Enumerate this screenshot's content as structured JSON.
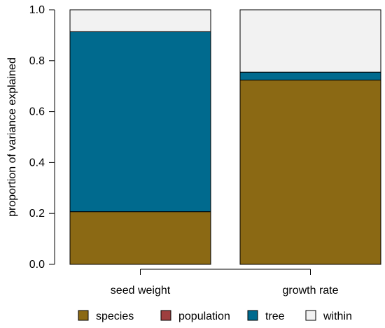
{
  "chart_data": {
    "type": "bar",
    "stacked": true,
    "ylabel": "proportion of variance explained",
    "xlabel": "",
    "ylim": [
      0,
      1
    ],
    "yticks": [
      "0.0",
      "0.2",
      "0.4",
      "0.6",
      "0.8",
      "1.0"
    ],
    "categories": [
      "seed weight",
      "growth rate"
    ],
    "series": [
      {
        "name": "species",
        "color": "#8B6914",
        "values": [
          0.207,
          0.724
        ]
      },
      {
        "name": "population",
        "color": "#9E3F3F",
        "values": [
          0.0,
          0.0
        ]
      },
      {
        "name": "tree",
        "color": "#006A8E",
        "values": [
          0.707,
          0.031
        ]
      },
      {
        "name": "within",
        "color": "#F2F2F2",
        "values": [
          0.086,
          0.245
        ]
      }
    ],
    "legend_position": "bottom",
    "grid": false
  }
}
